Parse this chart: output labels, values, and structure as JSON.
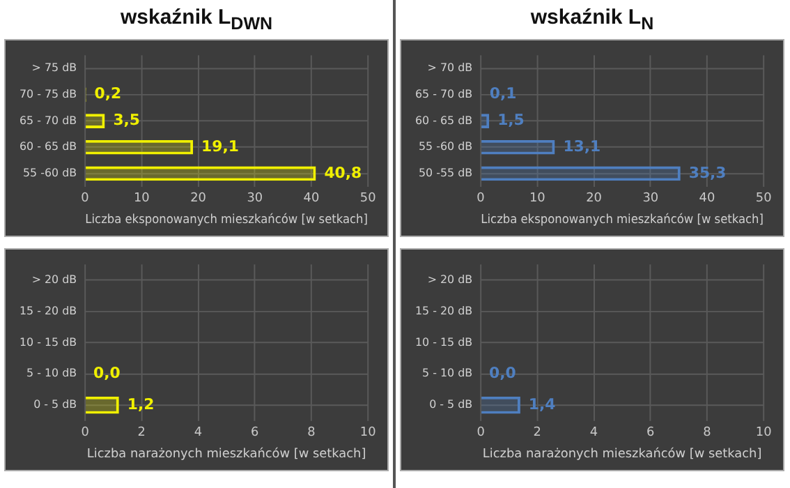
{
  "chart_data": [
    {
      "type": "bar",
      "orientation": "horizontal",
      "title": "wskaźnik L$_{DWN}$",
      "categories": [
        "> 75 dB",
        "70 - 75 dB",
        "65 - 70 dB",
        "60 - 65 dB",
        "55 -60 dB"
      ],
      "values": [
        null,
        0.2,
        3.5,
        19.1,
        40.8
      ],
      "value_labels": [
        null,
        "0,2",
        "3,5",
        "19,1",
        "40,8"
      ],
      "color": "#f0f000",
      "xlabel": "Liczba eksponowanych mieszkańców [w setkach]",
      "xlim": [
        0,
        50
      ],
      "xticks": [
        0,
        10,
        20,
        30,
        40,
        50
      ],
      "grid": true,
      "legend": false
    },
    {
      "type": "bar",
      "orientation": "horizontal",
      "title": "wskaźnik L$_{N}$",
      "categories": [
        "> 70 dB",
        "65 - 70 dB",
        "60 - 65 dB",
        "55 -60 dB",
        "50 -55 dB"
      ],
      "values": [
        null,
        0.1,
        1.5,
        13.1,
        35.3
      ],
      "value_labels": [
        null,
        "0,1",
        "1,5",
        "13,1",
        "35,3"
      ],
      "color": "#4f7fc0",
      "xlabel": "Liczba eksponowanych mieszkańców [w setkach]",
      "xlim": [
        0,
        50
      ],
      "xticks": [
        0,
        10,
        20,
        30,
        40,
        50
      ],
      "grid": true,
      "legend": false
    },
    {
      "type": "bar",
      "orientation": "horizontal",
      "categories": [
        "> 20 dB",
        "15 - 20 dB",
        "10 - 15 dB",
        "5 - 10 dB",
        "0 - 5 dB"
      ],
      "values": [
        null,
        null,
        null,
        0.0,
        1.2
      ],
      "value_labels": [
        null,
        null,
        null,
        "0,0",
        "1,2"
      ],
      "color": "#f0f000",
      "xlabel": "Liczba narażonych mieszkańców [w setkach]",
      "xlim": [
        0,
        10
      ],
      "xticks": [
        0,
        2,
        4,
        6,
        8,
        10
      ],
      "grid": true,
      "legend": false
    },
    {
      "type": "bar",
      "orientation": "horizontal",
      "categories": [
        "> 20 dB",
        "15 - 20 dB",
        "10 - 15 dB",
        "5 - 10 dB",
        "0 - 5 dB"
      ],
      "values": [
        null,
        null,
        null,
        0.0,
        1.4
      ],
      "value_labels": [
        null,
        null,
        null,
        "0,0",
        "1,4"
      ],
      "color": "#4f7fc0",
      "xlabel": "Liczba narażonych mieszkańców [w setkach]",
      "xlim": [
        0,
        10
      ],
      "xticks": [
        0,
        2,
        4,
        6,
        8,
        10
      ],
      "grid": true,
      "legend": false
    }
  ]
}
